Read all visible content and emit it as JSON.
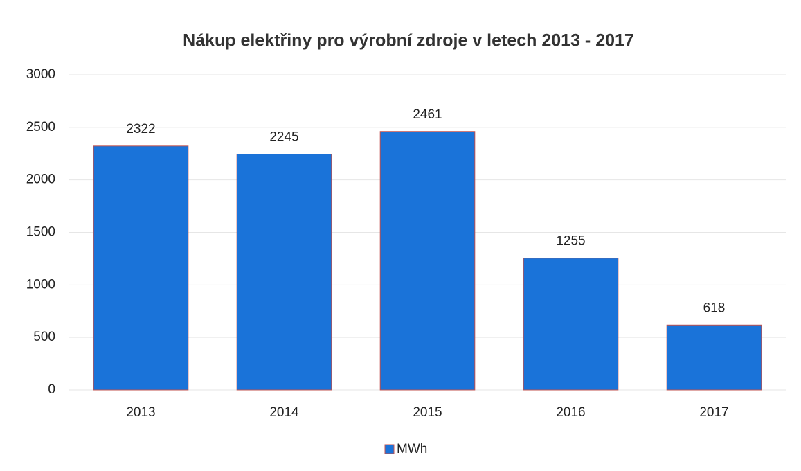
{
  "chart_data": {
    "type": "bar",
    "title": "Nákup elektřiny pro výrobní zdroje v letech 2013 - 2017",
    "categories": [
      "2013",
      "2014",
      "2015",
      "2016",
      "2017"
    ],
    "series": [
      {
        "name": "MWh",
        "color": "#1a73d9",
        "values": [
          2322,
          2245,
          2461,
          1255,
          618
        ]
      }
    ],
    "ylim": [
      0,
      3000
    ],
    "yticks": [
      0,
      500,
      1000,
      1500,
      2000,
      2500,
      3000
    ],
    "grid": true,
    "legend": "bottom"
  }
}
